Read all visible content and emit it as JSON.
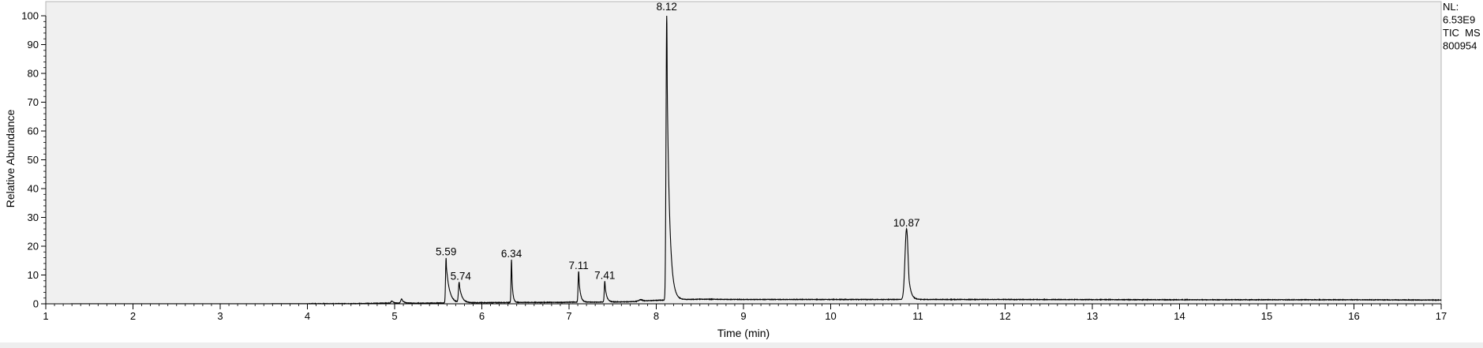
{
  "chart_data": {
    "type": "line",
    "xlabel": "Time (min)",
    "ylabel": "Relative Abundance",
    "xlim": [
      1,
      17
    ],
    "ylim": [
      0,
      100
    ],
    "x_ticks": [
      "1",
      "2",
      "3",
      "4",
      "5",
      "6",
      "7",
      "8",
      "9",
      "10",
      "11",
      "12",
      "13",
      "14",
      "15",
      "16",
      "17"
    ],
    "y_ticks": [
      "0",
      "10",
      "20",
      "30",
      "40",
      "50",
      "60",
      "70",
      "80",
      "90",
      "100"
    ],
    "grid": false,
    "background_color": "#f0f0f0",
    "line_color": "#000000",
    "baseline": [
      [
        1.0,
        0.0
      ],
      [
        4.5,
        0.05
      ],
      [
        4.9,
        0.25
      ],
      [
        5.3,
        0.2
      ],
      [
        5.5,
        0.3
      ],
      [
        6.0,
        0.4
      ],
      [
        6.5,
        0.5
      ],
      [
        6.9,
        0.5
      ],
      [
        7.05,
        0.6
      ],
      [
        7.3,
        0.6
      ],
      [
        7.7,
        0.7
      ],
      [
        7.85,
        1.0
      ],
      [
        8.0,
        1.2
      ],
      [
        8.5,
        1.6
      ],
      [
        9.0,
        1.5
      ],
      [
        10.0,
        1.5
      ],
      [
        10.7,
        1.5
      ],
      [
        11.0,
        1.5
      ],
      [
        12.0,
        1.5
      ],
      [
        14.0,
        1.4
      ],
      [
        16.0,
        1.4
      ],
      [
        17.0,
        1.3
      ]
    ],
    "peaks": [
      {
        "rt": 4.97,
        "height": 0.7,
        "sigma": 0.012,
        "tail": 0.02
      },
      {
        "rt": 5.08,
        "height": 1.5,
        "sigma": 0.01,
        "tail": 0.025
      },
      {
        "rt": 5.59,
        "height": 15.5,
        "sigma": 0.006,
        "tail": 0.035
      },
      {
        "rt": 5.74,
        "height": 7.0,
        "sigma": 0.008,
        "tail": 0.03
      },
      {
        "rt": 6.34,
        "height": 14.8,
        "sigma": 0.005,
        "tail": 0.012
      },
      {
        "rt": 7.11,
        "height": 10.7,
        "sigma": 0.006,
        "tail": 0.018
      },
      {
        "rt": 7.41,
        "height": 7.2,
        "sigma": 0.006,
        "tail": 0.02
      },
      {
        "rt": 7.82,
        "height": 0.5,
        "sigma": 0.02,
        "tail": 0.02
      },
      {
        "rt": 8.12,
        "height": 99.0,
        "sigma": 0.008,
        "tail": 0.03
      },
      {
        "rt": 10.87,
        "height": 24.5,
        "sigma": 0.018,
        "tail": 0.025
      }
    ],
    "peak_labels": [
      {
        "label": "5.59",
        "x": 5.59,
        "y": 15.5
      },
      {
        "label": "5.74",
        "x": 5.74,
        "y": 7.0
      },
      {
        "label": "6.34",
        "x": 6.34,
        "y": 14.8
      },
      {
        "label": "7.11",
        "x": 7.11,
        "y": 10.7
      },
      {
        "label": "7.41",
        "x": 7.41,
        "y": 7.2
      },
      {
        "label": "8.12",
        "x": 8.12,
        "y": 100
      },
      {
        "label": "10.87",
        "x": 10.87,
        "y": 25.5
      }
    ]
  },
  "info_box": {
    "lines": [
      "NL:",
      "6.53E9",
      "TIC  MS",
      "800954"
    ]
  }
}
